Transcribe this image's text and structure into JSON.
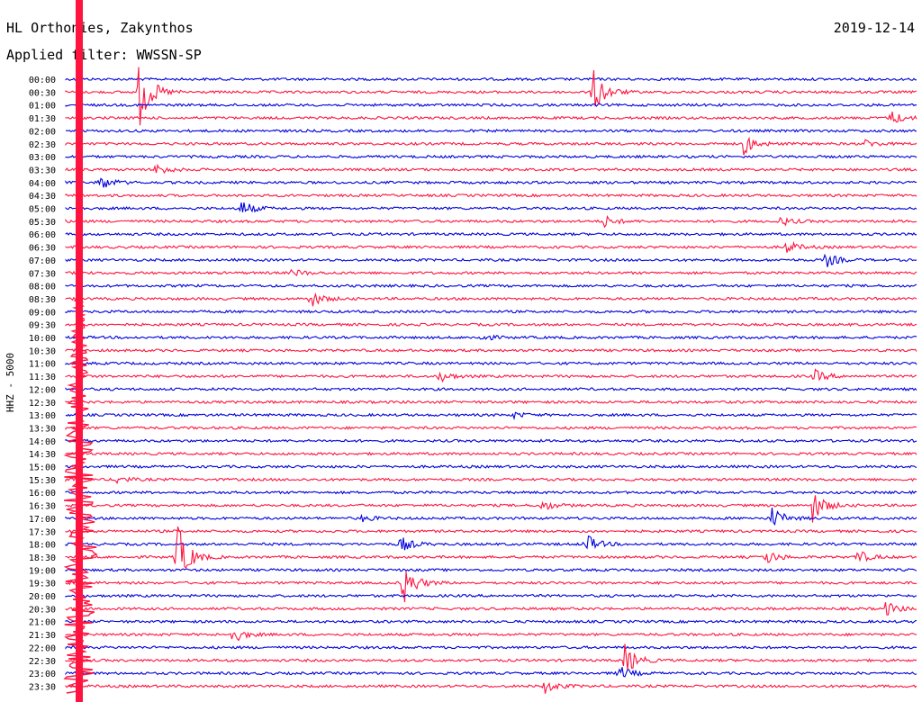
{
  "header": {
    "station": "HL Orthonies, Zakynthos",
    "date": "2019-12-14",
    "filter": "Applied filter: WWSSN-SP"
  },
  "channel_label": "HHZ - 5000",
  "colors": {
    "red": "#ff1440",
    "blue": "#0000dd"
  },
  "chart_data": {
    "type": "line",
    "title": "",
    "row_labels": [
      "00:00",
      "00:30",
      "01:00",
      "01:30",
      "02:00",
      "02:30",
      "03:00",
      "03:30",
      "04:00",
      "04:30",
      "05:00",
      "05:30",
      "06:00",
      "06:30",
      "07:00",
      "07:30",
      "08:00",
      "08:30",
      "09:00",
      "09:30",
      "10:00",
      "10:30",
      "11:00",
      "11:30",
      "12:00",
      "12:30",
      "13:00",
      "13:30",
      "14:00",
      "14:30",
      "15:00",
      "15:30",
      "16:00",
      "16:30",
      "17:00",
      "17:30",
      "18:00",
      "18:30",
      "19:00",
      "19:30",
      "20:00",
      "20:30",
      "21:00",
      "21:30",
      "22:00",
      "22:30",
      "23:00",
      "23:30"
    ],
    "row_colors": [
      "blue",
      "red",
      "blue",
      "red",
      "blue",
      "red",
      "blue",
      "red",
      "blue",
      "red",
      "blue",
      "red",
      "blue",
      "red",
      "blue",
      "red",
      "blue",
      "red",
      "blue",
      "red",
      "blue",
      "red",
      "blue",
      "red",
      "blue",
      "red",
      "blue",
      "red",
      "blue",
      "red",
      "blue",
      "red",
      "blue",
      "red",
      "blue",
      "red",
      "blue",
      "red",
      "blue",
      "red",
      "blue",
      "red",
      "blue",
      "red",
      "blue",
      "red",
      "blue",
      "red"
    ],
    "x_range_minutes": [
      0,
      30
    ],
    "events": [
      {
        "row": 1,
        "minute": 2.6,
        "amp": 40
      },
      {
        "row": 1,
        "minute": 18.6,
        "amp": 26
      },
      {
        "row": 2,
        "minute": 32.2,
        "amp": 10
      },
      {
        "row": 3,
        "minute": 29.1,
        "amp": 8
      },
      {
        "row": 5,
        "minute": 23.9,
        "amp": 12
      },
      {
        "row": 5,
        "minute": 31.2,
        "amp": 8
      },
      {
        "row": 5,
        "minute": 28.2,
        "amp": 4
      },
      {
        "row": 7,
        "minute": 3.2,
        "amp": 7
      },
      {
        "row": 8,
        "minute": 1.2,
        "amp": 9
      },
      {
        "row": 10,
        "minute": 6.2,
        "amp": 9
      },
      {
        "row": 11,
        "minute": 19.0,
        "amp": 6
      },
      {
        "row": 11,
        "minute": 25.2,
        "amp": 5
      },
      {
        "row": 13,
        "minute": 25.4,
        "amp": 7
      },
      {
        "row": 14,
        "minute": 26.8,
        "amp": 8
      },
      {
        "row": 15,
        "minute": 8.0,
        "amp": 4
      },
      {
        "row": 17,
        "minute": 8.6,
        "amp": 10
      },
      {
        "row": 20,
        "minute": 14.6,
        "amp": 4
      },
      {
        "row": 23,
        "minute": 13.2,
        "amp": 6
      },
      {
        "row": 23,
        "minute": 26.4,
        "amp": 7
      },
      {
        "row": 26,
        "minute": 15.8,
        "amp": 3
      },
      {
        "row": 31,
        "minute": 1.8,
        "amp": 4
      },
      {
        "row": 33,
        "minute": 26.3,
        "amp": 20
      },
      {
        "row": 33,
        "minute": 16.8,
        "amp": 6
      },
      {
        "row": 34,
        "minute": 24.9,
        "amp": 12
      },
      {
        "row": 34,
        "minute": 10.4,
        "amp": 4
      },
      {
        "row": 36,
        "minute": 11.8,
        "amp": 9
      },
      {
        "row": 36,
        "minute": 18.3,
        "amp": 12
      },
      {
        "row": 37,
        "minute": 3.9,
        "amp": 40
      },
      {
        "row": 37,
        "minute": 24.7,
        "amp": 8
      },
      {
        "row": 37,
        "minute": 27.9,
        "amp": 8
      },
      {
        "row": 39,
        "minute": 11.9,
        "amp": 24
      },
      {
        "row": 39,
        "minute": -0.5,
        "amp": 5
      },
      {
        "row": 41,
        "minute": 28.9,
        "amp": 8
      },
      {
        "row": 43,
        "minute": 5.9,
        "amp": 9
      },
      {
        "row": 44,
        "minute": 30.6,
        "amp": 6
      },
      {
        "row": 45,
        "minute": 19.7,
        "amp": 18
      },
      {
        "row": 46,
        "minute": 19.5,
        "amp": 8
      },
      {
        "row": 47,
        "minute": 16.9,
        "amp": 8
      }
    ]
  }
}
